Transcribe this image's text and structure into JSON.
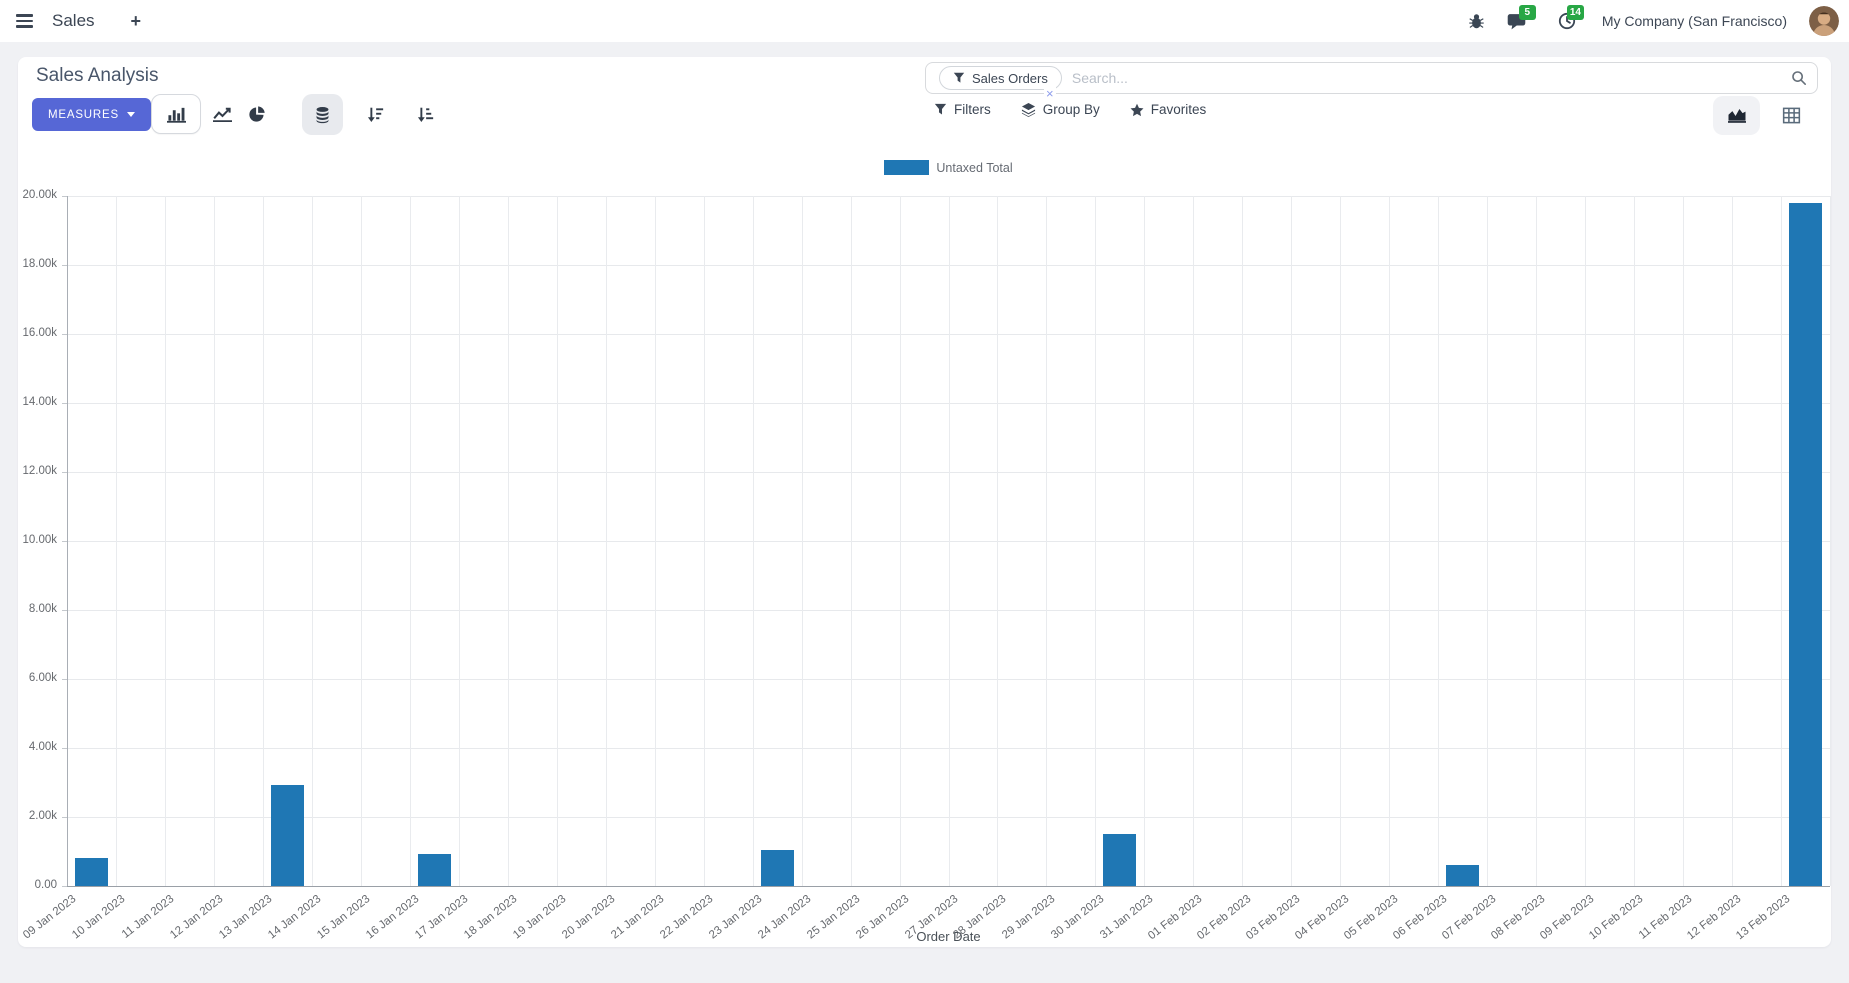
{
  "navbar": {
    "app_name": "Sales",
    "plus": "+",
    "message_count": "5",
    "activity_count": "14",
    "company_name": "My Company (San Francisco)"
  },
  "control_panel": {
    "title": "Sales Analysis",
    "measures_label": "MEASURES",
    "filters_label": "Filters",
    "group_by_label": "Group By",
    "favorites_label": "Favorites",
    "search_facet": "Sales Orders",
    "facet_remove": "×",
    "search_placeholder": "Search..."
  },
  "colors": {
    "primary": "#5667d6",
    "bar": "#1f77b4",
    "badge_green": "#28a745"
  },
  "chart_data": {
    "type": "bar",
    "title": "",
    "xlabel": "Order Date",
    "ylabel": "",
    "legend_position": "top",
    "grid": true,
    "ylim": [
      0,
      20000
    ],
    "ytick_step": 2000,
    "ytick_labels": [
      "0.00",
      "2.00k",
      "4.00k",
      "6.00k",
      "8.00k",
      "10.00k",
      "12.00k",
      "14.00k",
      "16.00k",
      "18.00k",
      "20.00k"
    ],
    "categories": [
      "09 Jan 2023",
      "10 Jan 2023",
      "11 Jan 2023",
      "12 Jan 2023",
      "13 Jan 2023",
      "14 Jan 2023",
      "15 Jan 2023",
      "16 Jan 2023",
      "17 Jan 2023",
      "18 Jan 2023",
      "19 Jan 2023",
      "20 Jan 2023",
      "21 Jan 2023",
      "22 Jan 2023",
      "23 Jan 2023",
      "24 Jan 2023",
      "25 Jan 2023",
      "26 Jan 2023",
      "27 Jan 2023",
      "28 Jan 2023",
      "29 Jan 2023",
      "30 Jan 2023",
      "31 Jan 2023",
      "01 Feb 2023",
      "02 Feb 2023",
      "03 Feb 2023",
      "04 Feb 2023",
      "05 Feb 2023",
      "06 Feb 2023",
      "07 Feb 2023",
      "08 Feb 2023",
      "09 Feb 2023",
      "10 Feb 2023",
      "11 Feb 2023",
      "12 Feb 2023",
      "13 Feb 2023"
    ],
    "series": [
      {
        "name": "Untaxed Total",
        "color": "#1f77b4",
        "values": [
          810,
          0,
          0,
          0,
          2930,
          0,
          0,
          930,
          0,
          0,
          0,
          0,
          0,
          0,
          1040,
          0,
          0,
          0,
          0,
          0,
          0,
          1510,
          0,
          0,
          0,
          0,
          0,
          0,
          610,
          0,
          0,
          0,
          0,
          0,
          0,
          19800
        ]
      }
    ]
  }
}
